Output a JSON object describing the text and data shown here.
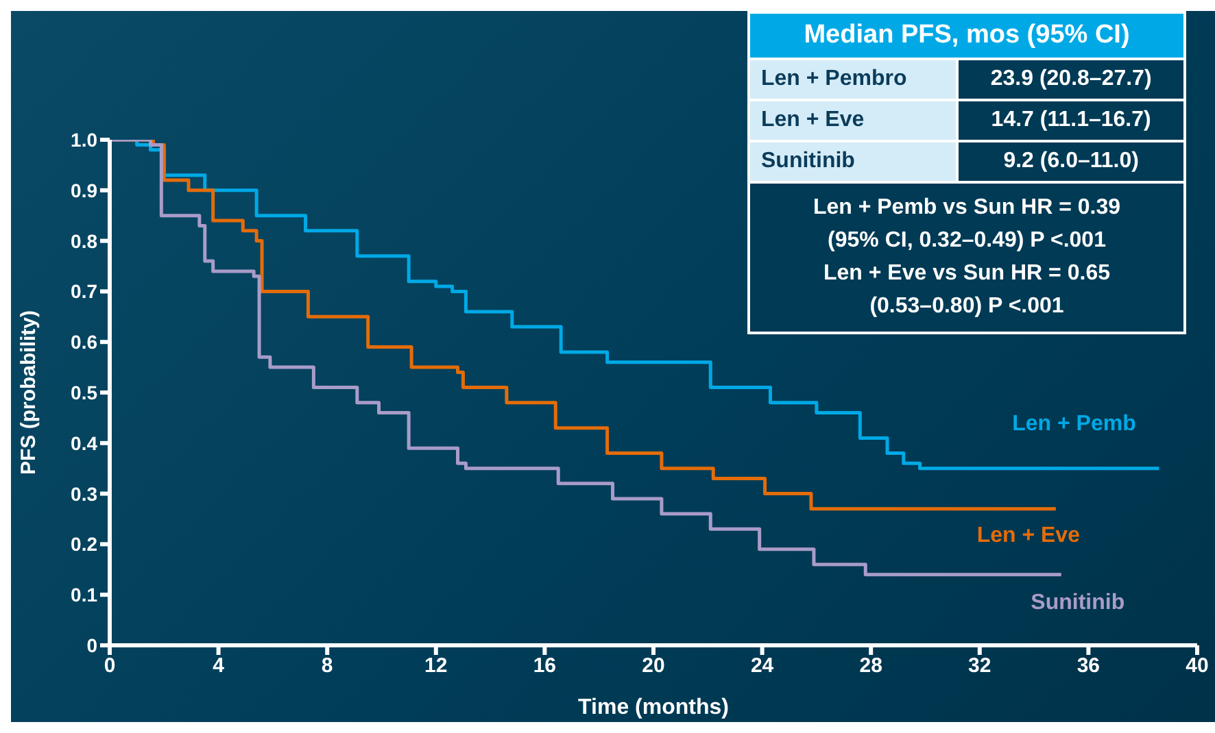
{
  "chart_data": {
    "type": "step",
    "xlabel": "Time (months)",
    "ylabel": "PFS (probability)",
    "xlim": [
      0,
      40
    ],
    "xticks": [
      0,
      4,
      8,
      12,
      16,
      20,
      24,
      28,
      32,
      36,
      40
    ],
    "ylim": [
      0,
      1
    ],
    "yticks": [
      0,
      0.1,
      0.2,
      0.3,
      0.4,
      0.5,
      0.6,
      0.7,
      0.8,
      0.9,
      {
        "value": 1,
        "label": "1.0"
      }
    ],
    "grid": false,
    "marker": "none",
    "line_style": "solid",
    "series": [
      {
        "name": "Len + Pemb",
        "color": "#00a9e6",
        "x": [
          0,
          1.0,
          1.5,
          2.0,
          3.5,
          5.4,
          7.2,
          9.1,
          11.0,
          12.0,
          12.6,
          13.1,
          14.8,
          16.6,
          18.3,
          22.1,
          24.3,
          26.0,
          27.6,
          28.6,
          29.2,
          29.8,
          38.6
        ],
        "values": [
          1.0,
          0.99,
          0.98,
          0.93,
          0.9,
          0.85,
          0.82,
          0.77,
          0.72,
          0.71,
          0.7,
          0.66,
          0.63,
          0.58,
          0.56,
          0.51,
          0.48,
          0.46,
          0.41,
          0.38,
          0.36,
          0.35,
          0.35
        ]
      },
      {
        "name": "Len + Eve",
        "color": "#e46c0a",
        "x": [
          0,
          1.6,
          2.0,
          2.9,
          3.8,
          4.9,
          5.4,
          5.6,
          7.3,
          9.5,
          11.1,
          12.8,
          13.0,
          14.6,
          16.4,
          18.3,
          20.3,
          22.2,
          24.1,
          25.8,
          34.8
        ],
        "values": [
          1.0,
          0.99,
          0.92,
          0.9,
          0.84,
          0.82,
          0.8,
          0.7,
          0.65,
          0.59,
          0.55,
          0.54,
          0.51,
          0.48,
          0.43,
          0.38,
          0.35,
          0.33,
          0.3,
          0.27,
          0.27
        ]
      },
      {
        "name": "Sunitinib",
        "color": "#a99cc9",
        "x": [
          0,
          1.5,
          1.9,
          3.3,
          3.5,
          3.8,
          5.3,
          5.5,
          5.9,
          7.5,
          9.1,
          9.9,
          11.0,
          12.8,
          13.1,
          16.5,
          18.5,
          20.3,
          22.1,
          23.9,
          25.9,
          27.8,
          35.0
        ],
        "values": [
          1.0,
          0.99,
          0.85,
          0.83,
          0.76,
          0.74,
          0.73,
          0.57,
          0.55,
          0.51,
          0.48,
          0.46,
          0.39,
          0.36,
          0.35,
          0.32,
          0.29,
          0.26,
          0.23,
          0.19,
          0.16,
          0.14,
          0.14
        ]
      }
    ],
    "annotations": [
      "Median PFS, mos (95% CI)",
      "Len + Pembro",
      "23.9 (20.8–27.7)",
      "Len + Eve",
      "14.7 (11.1–16.7)",
      "Sunitinib",
      "9.2 (6.0–11.0)",
      "Len + Pemb vs Sun HR = 0.39",
      "(95% CI, 0.32–0.49) P <.001",
      "Len + Eve vs Sun HR = 0.65",
      "(0.53–0.80) P <.001"
    ]
  }
}
